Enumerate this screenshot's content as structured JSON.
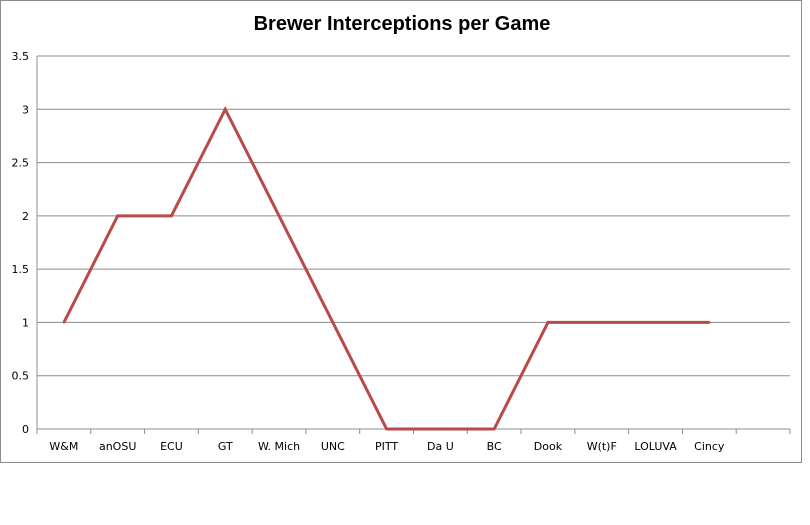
{
  "chart_data": {
    "type": "line",
    "title": "Brewer Interceptions per Game",
    "xlabel": "",
    "ylabel": "",
    "categories": [
      "W&M",
      "anOSU",
      "ECU",
      "GT",
      "W. Mich",
      "UNC",
      "PITT",
      "Da U",
      "BC",
      "Dook",
      "W(t)F",
      "LOLUVA",
      "Cincy"
    ],
    "series": [
      {
        "values": [
          1,
          2,
          2,
          3,
          2,
          1,
          0,
          0,
          0,
          1,
          1,
          1,
          1
        ]
      }
    ],
    "ylim": [
      0,
      3.5
    ],
    "yticks": [
      "0",
      "0.5",
      "1",
      "1.5",
      "2",
      "2.5",
      "3",
      "3.5"
    ],
    "grid": true,
    "legend": "none",
    "colors": {
      "line": "#b84a4a",
      "grid": "#8c8c8c",
      "axis": "#8c8c8c"
    }
  }
}
